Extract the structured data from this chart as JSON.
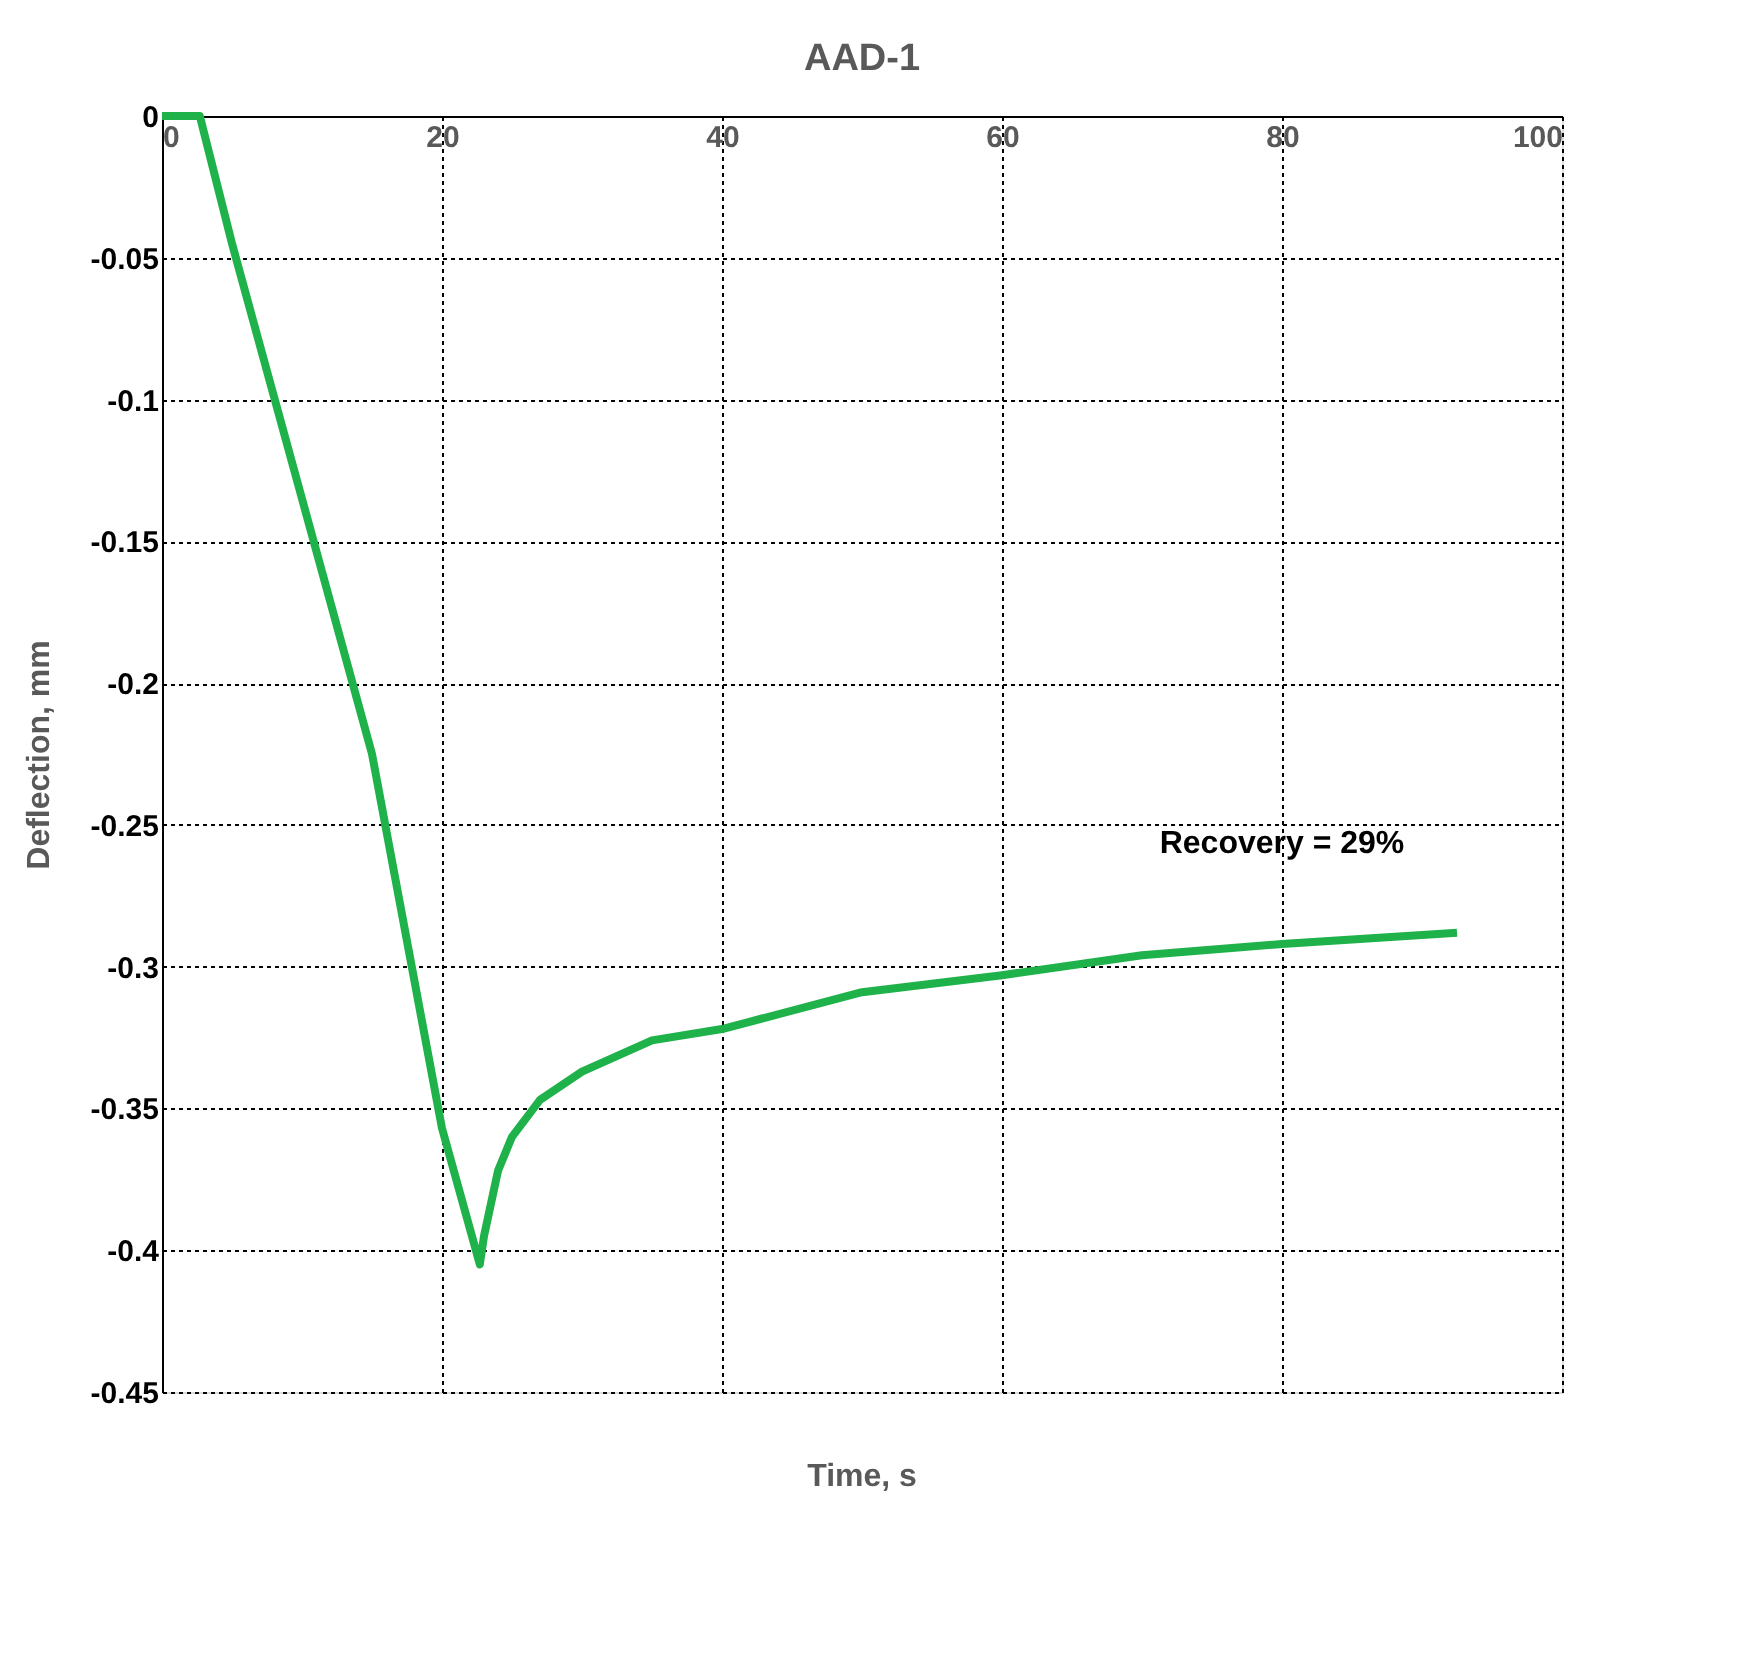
{
  "chart_data": {
    "type": "line",
    "title": "AAD-1",
    "xlabel": "Time, s",
    "ylabel": "Deflection, mm",
    "series": [
      {
        "color": "#1fb24a",
        "x": [
          0,
          2.7,
          5,
          10,
          15,
          20,
          22.7,
          23,
          24,
          25,
          27,
          30,
          35,
          40,
          50,
          60,
          70,
          80,
          92.5
        ],
        "values": [
          0,
          0,
          -0.045,
          -0.135,
          -0.225,
          -0.357,
          -0.405,
          -0.395,
          -0.372,
          -0.36,
          -0.347,
          -0.337,
          -0.326,
          -0.322,
          -0.309,
          -0.303,
          -0.296,
          -0.292,
          -0.288
        ]
      }
    ],
    "xlim": [
      0,
      100
    ],
    "xticks": [
      0,
      20,
      40,
      60,
      80,
      100
    ],
    "ylim": [
      -0.45,
      0
    ],
    "yticks": [
      0,
      -0.05,
      -0.1,
      -0.15,
      -0.2,
      -0.25,
      -0.3,
      -0.35,
      -0.4,
      -0.45
    ],
    "grid": true,
    "line_style": "solid",
    "marker": "none",
    "annotations": [
      "Recovery = 29%"
    ]
  }
}
